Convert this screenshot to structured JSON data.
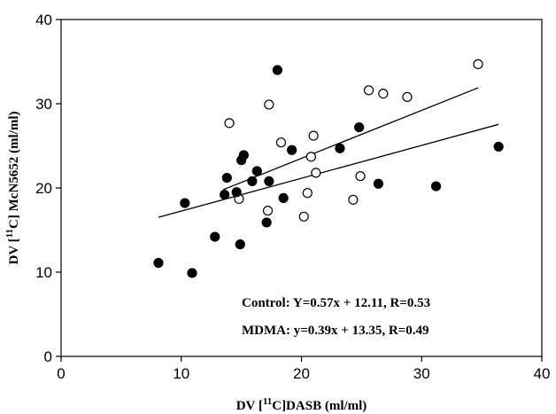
{
  "chart_data": {
    "type": "scatter",
    "title": "",
    "xlabel": {
      "pre": "DV [",
      "sup": "11",
      "post": "C]DASB (ml/ml)"
    },
    "ylabel": {
      "pre": "DV [",
      "sup": "11",
      "post": "C] McN5652 (ml/ml)"
    },
    "xlim": [
      0,
      40
    ],
    "ylim": [
      0,
      40
    ],
    "xticks": [
      "0",
      "10",
      "20",
      "30",
      "40"
    ],
    "yticks": [
      "0",
      "10",
      "20",
      "30",
      "40"
    ],
    "grid": false,
    "series": [
      {
        "marker": "open-circle",
        "points": [
          [
            14.0,
            27.7
          ],
          [
            14.8,
            18.7
          ],
          [
            17.2,
            17.3
          ],
          [
            17.3,
            29.9
          ],
          [
            18.3,
            25.4
          ],
          [
            20.2,
            16.6
          ],
          [
            20.5,
            19.4
          ],
          [
            20.8,
            23.7
          ],
          [
            21.0,
            26.2
          ],
          [
            21.2,
            21.8
          ],
          [
            24.3,
            18.6
          ],
          [
            24.9,
            21.4
          ],
          [
            25.6,
            31.6
          ],
          [
            26.8,
            31.2
          ],
          [
            28.8,
            30.8
          ],
          [
            34.7,
            34.7
          ]
        ],
        "fit": {
          "slope": 0.57,
          "intercept": 12.11,
          "x_range": [
            13.5,
            34.7
          ]
        }
      },
      {
        "marker": "filled-circle",
        "points": [
          [
            8.1,
            11.1
          ],
          [
            10.3,
            18.2
          ],
          [
            10.9,
            9.9
          ],
          [
            12.8,
            14.2
          ],
          [
            13.6,
            19.2
          ],
          [
            13.8,
            21.2
          ],
          [
            14.6,
            19.5
          ],
          [
            14.9,
            13.3
          ],
          [
            15.0,
            23.3
          ],
          [
            15.2,
            23.9
          ],
          [
            15.9,
            20.8
          ],
          [
            16.3,
            22.0
          ],
          [
            17.1,
            15.9
          ],
          [
            17.3,
            20.8
          ],
          [
            18.0,
            34.0
          ],
          [
            18.5,
            18.8
          ],
          [
            19.2,
            24.5
          ],
          [
            23.2,
            24.7
          ],
          [
            24.8,
            27.2
          ],
          [
            26.4,
            20.5
          ],
          [
            31.2,
            20.2
          ],
          [
            36.4,
            24.9
          ]
        ],
        "fit": {
          "slope": 0.39,
          "intercept": 13.35,
          "x_range": [
            8.1,
            36.4
          ]
        }
      }
    ],
    "annotations": [
      "Control: Y=0.57x + 12.11, R=0.53",
      "MDMA: y=0.39x + 13.35, R=0.49"
    ]
  }
}
